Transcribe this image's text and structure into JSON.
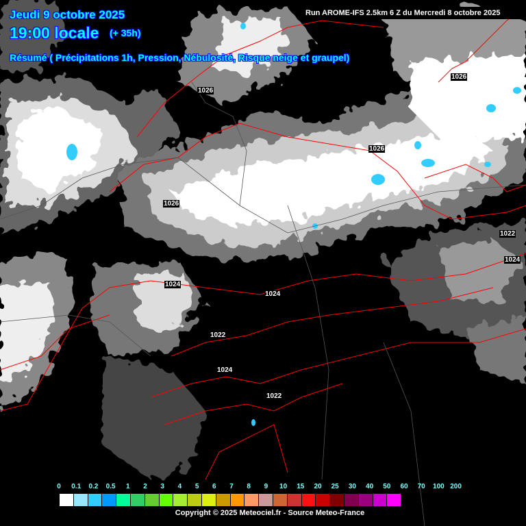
{
  "header": {
    "date": "Jeudi 9 octobre 2025",
    "time": "19:00 locale",
    "lead": "(+ 35h)",
    "summary": "Résumé ( Précipitations 1h, Pression, Nébulosité, Risque neige et graupel)",
    "run": "Run AROME-IFS 2.5km 6 Z du Mercredi 8 octobre 2025"
  },
  "isobar_color": "#ff0000",
  "pressure_labels": [
    "1026",
    "1026",
    "1026",
    "1026",
    "1022",
    "1024",
    "1024",
    "1024",
    "1022",
    "1024",
    "1022"
  ],
  "legend": {
    "ticks": [
      "0",
      "0.1",
      "0.2",
      "0.5",
      "1",
      "2",
      "3",
      "4",
      "5",
      "6",
      "7",
      "8",
      "9",
      "10",
      "15",
      "20",
      "25",
      "30",
      "40",
      "50",
      "60",
      "70",
      "100",
      "200"
    ],
    "colors": [
      "#ffffff",
      "#99e6ff",
      "#33ccff",
      "#0099ff",
      "#00ff99",
      "#33cc66",
      "#66cc33",
      "#66ff00",
      "#a6ee33",
      "#bbcc11",
      "#ddee11",
      "#cc9900",
      "#ff9900",
      "#ff9966",
      "#cc9999",
      "#cc6633",
      "#cc3333",
      "#ff1111",
      "#cc0000",
      "#800000",
      "#800050",
      "#990080",
      "#cc00cc",
      "#ff00ff"
    ]
  },
  "footer": {
    "copyright": "Copyright © 2025 Meteociel.fr - Source Meteo-France"
  }
}
